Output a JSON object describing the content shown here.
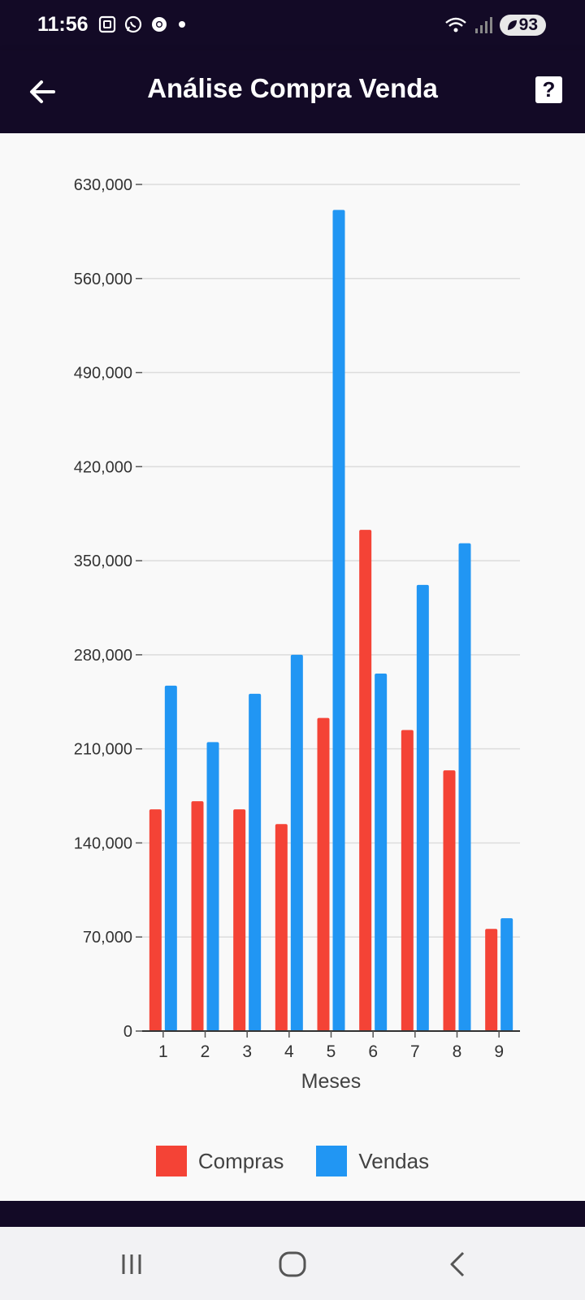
{
  "status_bar": {
    "time": "11:56",
    "battery": "93",
    "icons_left": [
      "screenshot-icon",
      "whatsapp-icon",
      "chrome-icon",
      "dot-icon"
    ],
    "icons_right": [
      "wifi-icon",
      "signal-icon",
      "battery-icon"
    ]
  },
  "app_bar": {
    "title": "Análise Compra Venda",
    "back_icon": "arrow-back-icon",
    "help_label": "?"
  },
  "colors": {
    "appbar": "#130a26",
    "compras": "#f44336",
    "vendas": "#2196f3"
  },
  "chart_data": {
    "type": "bar",
    "title": "",
    "xlabel": "Meses",
    "ylabel": "",
    "categories": [
      "1",
      "2",
      "3",
      "4",
      "5",
      "6",
      "7",
      "8",
      "9"
    ],
    "series": [
      {
        "name": "Compras",
        "color": "#f44336",
        "values": [
          165000,
          171000,
          165000,
          154000,
          233000,
          373000,
          224000,
          194000,
          76000
        ]
      },
      {
        "name": "Vendas",
        "color": "#2196f3",
        "values": [
          257000,
          215000,
          251000,
          280000,
          611000,
          266000,
          332000,
          363000,
          84000
        ]
      }
    ],
    "ylim": [
      0,
      630000
    ],
    "yticks": [
      0,
      70000,
      140000,
      210000,
      280000,
      350000,
      420000,
      490000,
      560000,
      630000
    ],
    "ytick_labels": [
      "0",
      "70,000",
      "140,000",
      "210,000",
      "280,000",
      "350,000",
      "420,000",
      "490,000",
      "560,000",
      "630,000"
    ],
    "grid": true,
    "legend_position": "bottom-center"
  },
  "legend": {
    "compras_label": "Compras",
    "vendas_label": "Vendas"
  },
  "nav": {
    "recents_icon": "recent-apps-icon",
    "home_icon": "home-icon",
    "back_icon": "nav-back-icon"
  }
}
